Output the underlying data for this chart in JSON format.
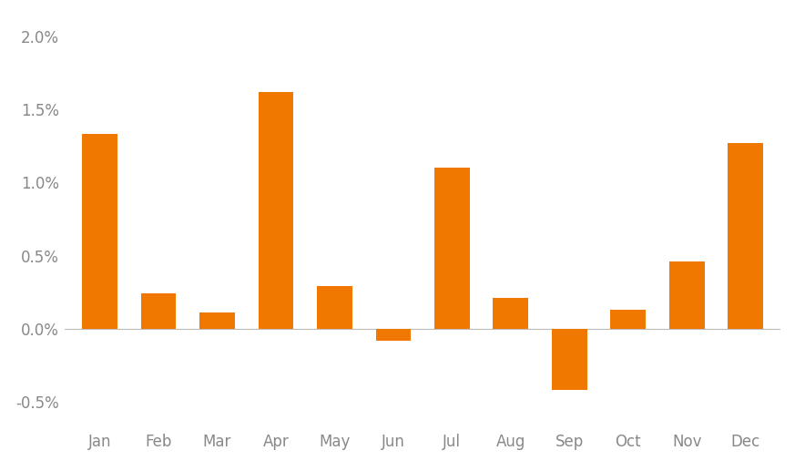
{
  "months": [
    "Jan",
    "Feb",
    "Mar",
    "Apr",
    "May",
    "Jun",
    "Jul",
    "Aug",
    "Sep",
    "Oct",
    "Nov",
    "Dec"
  ],
  "values": [
    0.0133,
    0.0024,
    0.0011,
    0.0162,
    0.0029,
    -0.0008,
    0.011,
    0.0021,
    -0.0042,
    0.0013,
    0.0046,
    0.0127
  ],
  "bar_color": "#F07800",
  "background_color": "#ffffff",
  "ylim": [
    -0.0065,
    0.0215
  ],
  "yticks": [
    -0.005,
    0.0,
    0.005,
    0.01,
    0.015,
    0.02
  ],
  "ytick_labels": [
    "-0.5%",
    "0.0%",
    "0.5%",
    "1.0%",
    "1.5%",
    "2.0%"
  ],
  "tick_label_fontsize": 12,
  "bar_width": 0.6,
  "label_color": "#888888",
  "zero_line_color": "#bbbbbb",
  "font_family": "sans-serif"
}
